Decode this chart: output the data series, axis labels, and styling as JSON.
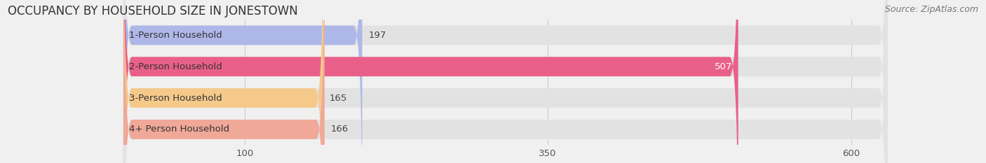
{
  "title": "OCCUPANCY BY HOUSEHOLD SIZE IN JONESTOWN",
  "source": "Source: ZipAtlas.com",
  "categories": [
    "1-Person Household",
    "2-Person Household",
    "3-Person Household",
    "4+ Person Household"
  ],
  "values": [
    197,
    507,
    165,
    166
  ],
  "bar_colors": [
    "#aeb8e8",
    "#e8608a",
    "#f5c98a",
    "#f0a898"
  ],
  "bar_label_colors": [
    "#555555",
    "#ffffff",
    "#555555",
    "#555555"
  ],
  "xlim": [
    0,
    630
  ],
  "xticks": [
    100,
    350,
    600
  ],
  "background_color": "#f0f0f0",
  "bar_bg_color": "#e2e2e2",
  "title_fontsize": 12,
  "source_fontsize": 9,
  "label_fontsize": 9.5,
  "value_fontsize": 9.5,
  "tick_fontsize": 9.5,
  "bar_height": 0.62,
  "figsize": [
    14.06,
    2.33
  ],
  "dpi": 100
}
